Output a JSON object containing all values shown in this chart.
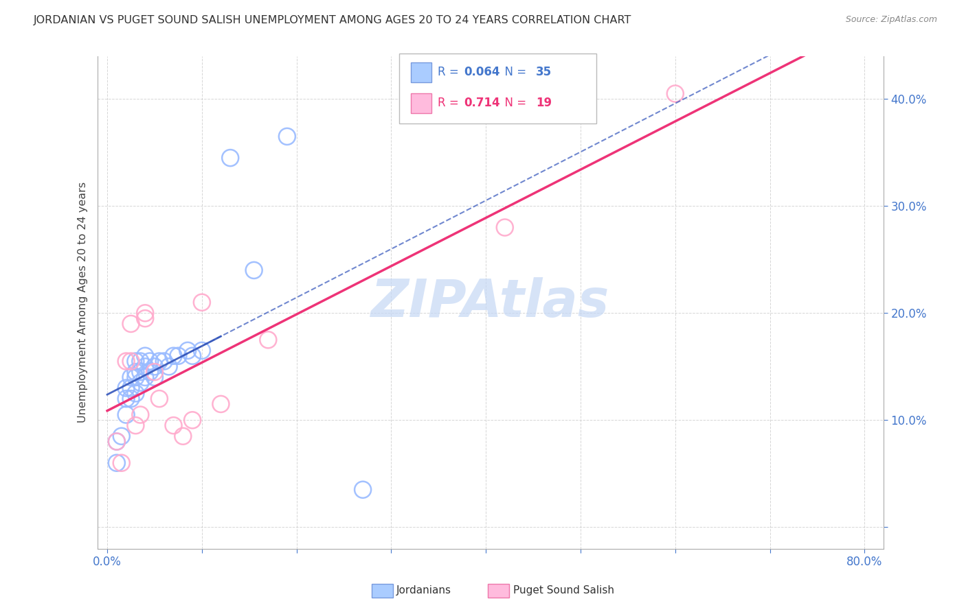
{
  "title": "JORDANIAN VS PUGET SOUND SALISH UNEMPLOYMENT AMONG AGES 20 TO 24 YEARS CORRELATION CHART",
  "source": "Source: ZipAtlas.com",
  "ylabel": "Unemployment Among Ages 20 to 24 years",
  "r_jordanian": 0.064,
  "n_jordanian": 35,
  "r_salish": 0.714,
  "n_salish": 19,
  "blue_scatter_color": "#99bbff",
  "pink_scatter_color": "#ffaacc",
  "blue_line_color": "#3355bb",
  "pink_line_color": "#ee3377",
  "watermark_color": "#c5d8f5",
  "background_color": "#ffffff",
  "grid_color": "#cccccc",
  "jordanian_x": [
    0.01,
    0.01,
    0.015,
    0.02,
    0.02,
    0.02,
    0.025,
    0.025,
    0.025,
    0.03,
    0.03,
    0.03,
    0.03,
    0.035,
    0.035,
    0.035,
    0.04,
    0.04,
    0.04,
    0.045,
    0.045,
    0.05,
    0.05,
    0.055,
    0.06,
    0.065,
    0.07,
    0.075,
    0.085,
    0.09,
    0.1,
    0.13,
    0.155,
    0.19,
    0.27
  ],
  "jordanian_y": [
    0.08,
    0.06,
    0.085,
    0.13,
    0.12,
    0.105,
    0.14,
    0.13,
    0.12,
    0.155,
    0.145,
    0.14,
    0.125,
    0.155,
    0.145,
    0.135,
    0.16,
    0.15,
    0.14,
    0.155,
    0.145,
    0.15,
    0.14,
    0.155,
    0.155,
    0.15,
    0.16,
    0.16,
    0.165,
    0.16,
    0.165,
    0.345,
    0.24,
    0.365,
    0.035
  ],
  "salish_x": [
    0.01,
    0.015,
    0.02,
    0.025,
    0.025,
    0.03,
    0.035,
    0.04,
    0.04,
    0.05,
    0.055,
    0.07,
    0.08,
    0.09,
    0.1,
    0.12,
    0.17,
    0.42,
    0.6
  ],
  "salish_y": [
    0.08,
    0.06,
    0.155,
    0.155,
    0.19,
    0.095,
    0.105,
    0.2,
    0.195,
    0.145,
    0.12,
    0.095,
    0.085,
    0.1,
    0.21,
    0.115,
    0.175,
    0.28,
    0.405
  ],
  "xlim": [
    -0.01,
    0.82
  ],
  "ylim": [
    -0.02,
    0.44
  ],
  "ytick_positions": [
    0.0,
    0.1,
    0.2,
    0.3,
    0.4
  ],
  "ytick_labels": [
    "",
    "10.0%",
    "20.0%",
    "30.0%",
    "40.0%"
  ],
  "xtick_positions": [
    0.0,
    0.1,
    0.2,
    0.3,
    0.4,
    0.5,
    0.6,
    0.7,
    0.8
  ],
  "xtick_labels": [
    "0.0%",
    "",
    "",
    "",
    "",
    "",
    "",
    "",
    "80.0%"
  ],
  "tick_color": "#4477cc",
  "axis_color": "#aaaaaa"
}
